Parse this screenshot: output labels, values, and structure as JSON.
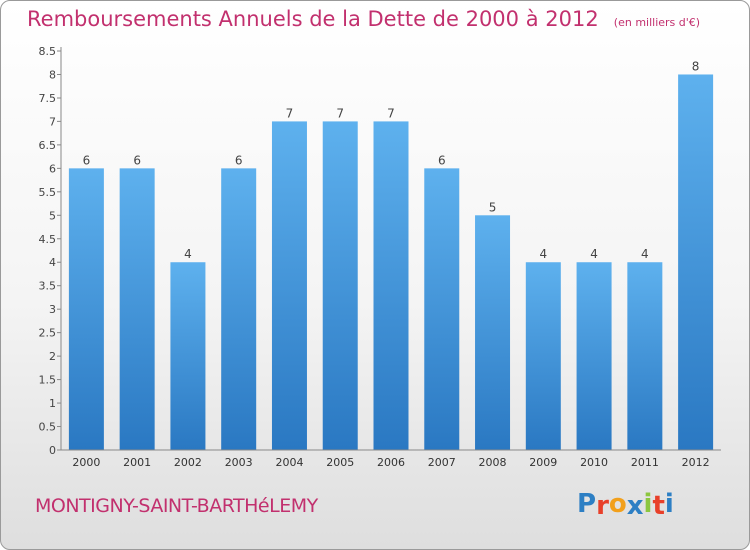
{
  "chart_data": {
    "type": "bar",
    "title": "Remboursements Annuels de la Dette de 2000 à 2012",
    "subtitle": "(en milliers d'€)",
    "categories": [
      "2000",
      "2001",
      "2002",
      "2003",
      "2004",
      "2005",
      "2006",
      "2007",
      "2008",
      "2009",
      "2010",
      "2011",
      "2012"
    ],
    "values": [
      6,
      6,
      4,
      6,
      7,
      7,
      7,
      6,
      5,
      4,
      4,
      4,
      8
    ],
    "data_labels": [
      "6",
      "6",
      "4",
      "6",
      "7",
      "7",
      "7",
      "6",
      "5",
      "4",
      "4",
      "4",
      "8"
    ],
    "ylim": [
      0,
      8.5
    ],
    "y_ticks": [
      "0",
      "0.5",
      "1",
      "1.5",
      "2",
      "2.5",
      "3",
      "3.5",
      "4",
      "4.5",
      "5",
      "5.5",
      "6",
      "6.5",
      "7",
      "7.5",
      "8",
      "8.5"
    ],
    "grid": false,
    "bar_color": "#3a8fd6"
  },
  "footer": {
    "commune": "MONTIGNY-SAINT-BARTHéLEMY",
    "logo_letters": [
      "P",
      "r",
      "o",
      "x",
      "i",
      "t",
      "i"
    ],
    "logo_colors": [
      "#2d7fc4",
      "#e8402a",
      "#f2a01c",
      "#2d7fc4",
      "#8cc63f",
      "#e8402a",
      "#2d7fc4"
    ]
  }
}
